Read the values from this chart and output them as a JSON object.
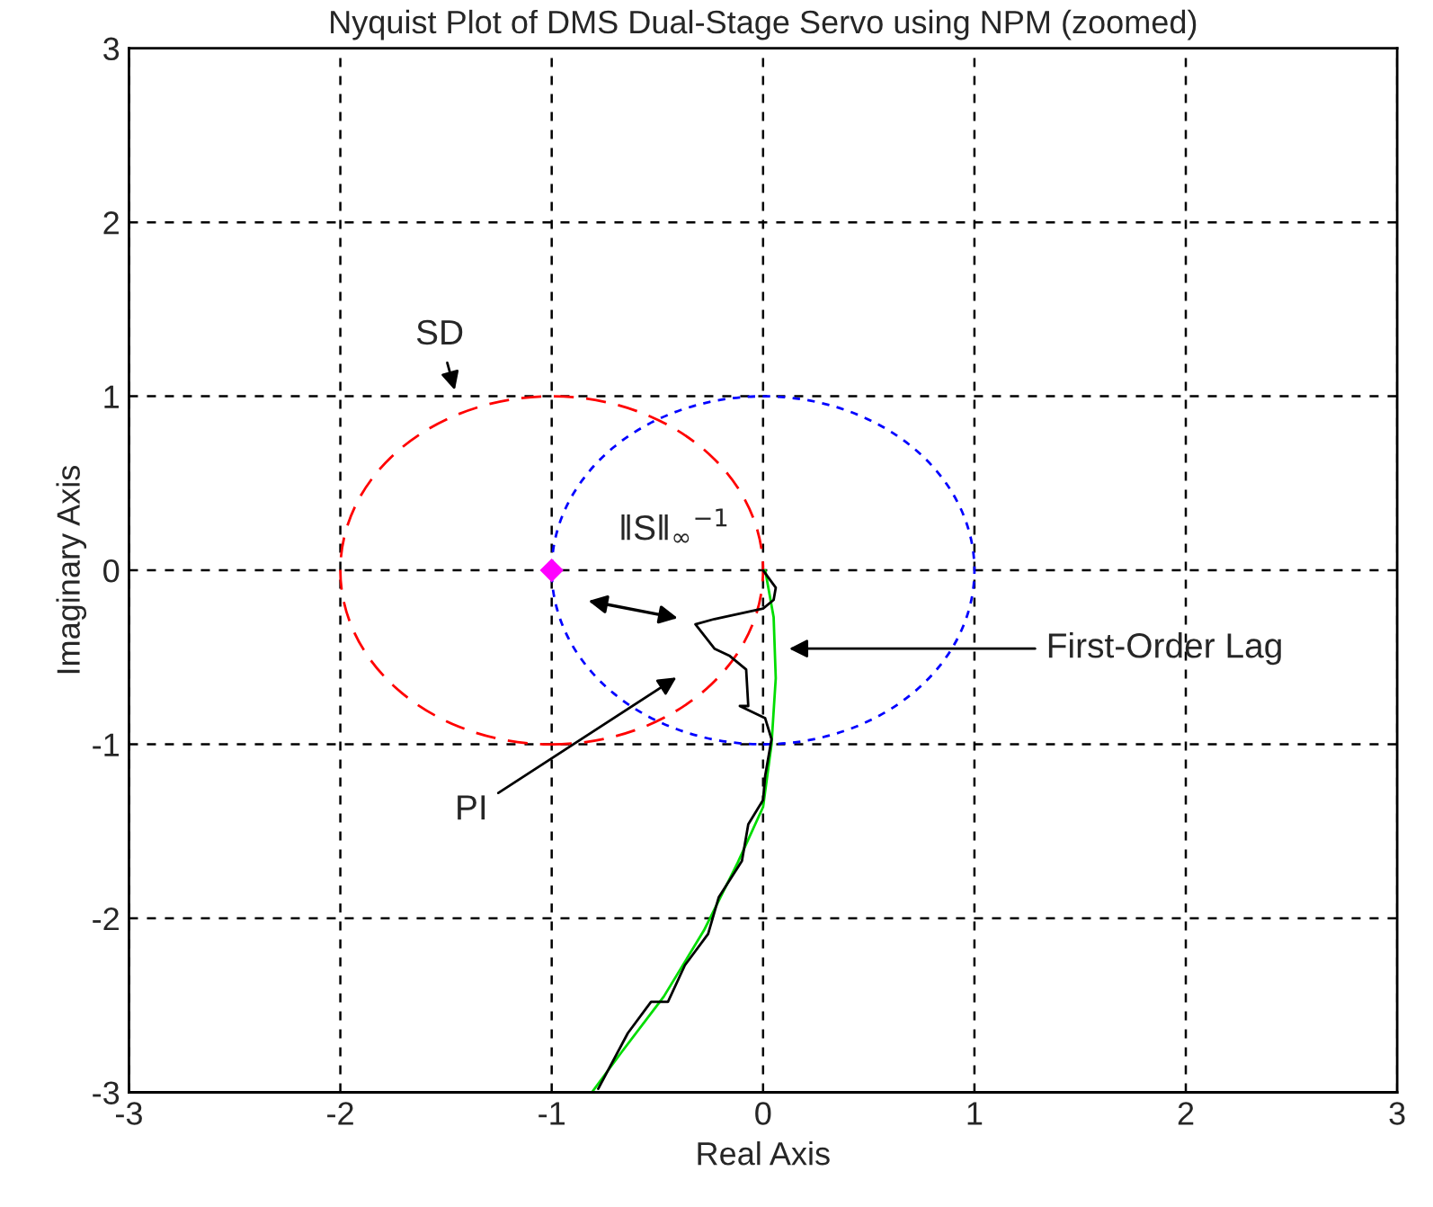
{
  "chart_data": {
    "type": "line",
    "title": "Nyquist Plot of DMS Dual-Stage Servo using NPM (zoomed)",
    "xlabel": "Real Axis",
    "ylabel": "Imaginary Axis",
    "xlim": [
      -3,
      3
    ],
    "ylim": [
      -3,
      3
    ],
    "xticks": [
      -3,
      -2,
      -1,
      0,
      1,
      2,
      3
    ],
    "yticks": [
      -3,
      -2,
      -1,
      0,
      1,
      2,
      3
    ],
    "grid": true,
    "series": [
      {
        "color": "#00dd00",
        "line_style": "solid",
        "x": [
          0.01,
          0.05,
          0.06,
          0.04,
          0,
          -0.12,
          -0.28,
          -0.47,
          -0.67,
          -0.81
        ],
        "values": [
          0,
          -0.27,
          -0.62,
          -1.0,
          -1.36,
          -1.68,
          -2.07,
          -2.45,
          -2.77,
          -3.0
        ]
      },
      {
        "type": "line",
        "color": "#000000",
        "line_style": "solid",
        "x": [
          0,
          0.06,
          0.05,
          0,
          -0.23,
          -0.32,
          -0.23,
          -0.16,
          -0.08,
          -0.07,
          -0.11,
          0.01,
          0.04,
          0.01,
          0,
          -0.07,
          -0.1,
          -0.21,
          -0.26,
          -0.37,
          -0.45,
          -0.53,
          -0.64,
          -0.78
        ],
        "values": [
          0,
          -0.1,
          -0.17,
          -0.22,
          -0.28,
          -0.31,
          -0.45,
          -0.49,
          -0.57,
          -0.78,
          -0.78,
          -0.85,
          -0.97,
          -1.18,
          -1.32,
          -1.46,
          -1.67,
          -1.88,
          -2.09,
          -2.27,
          -2.48,
          -2.48,
          -2.66,
          -2.98
        ]
      },
      {
        "type": "scatter",
        "color": "#ff00ff",
        "marker": "diamond",
        "x": [
          -1
        ],
        "values": [
          0
        ]
      }
    ],
    "annotations": [
      "SD",
      "‖S‖$_{∞}$$^{−1}$",
      {
        "text": "First-Order Lag",
        "x": 0.1,
        "y": -0.45
      },
      "PI"
    ]
  }
}
